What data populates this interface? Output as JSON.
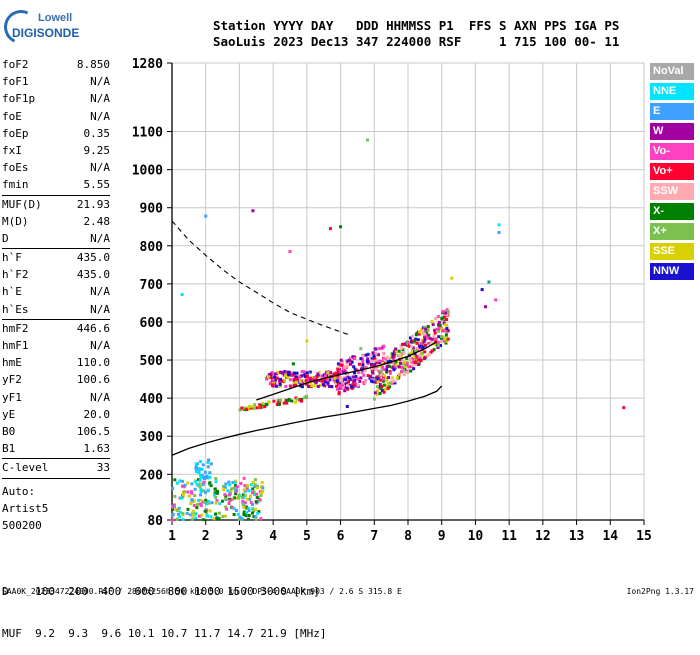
{
  "logo": {
    "line1": "Lowell",
    "line2": "DIGISONDE"
  },
  "header": {
    "line1": "Station YYYY DAY   DDD HHMMSS P1  FFS S AXN PPS IGA PS",
    "line2": "SaoLuis 2023 Dec13 347 224000 RSF     1 715 100 00- 11"
  },
  "params": {
    "g1": [
      {
        "k": "foF2",
        "v": "8.850"
      },
      {
        "k": "foF1",
        "v": "N/A"
      },
      {
        "k": "foF1p",
        "v": "N/A"
      },
      {
        "k": "foE",
        "v": "N/A"
      },
      {
        "k": "foEp",
        "v": "0.35"
      },
      {
        "k": "fxI",
        "v": "9.25"
      },
      {
        "k": "foEs",
        "v": "N/A"
      },
      {
        "k": "fmin",
        "v": "5.55"
      }
    ],
    "g2": [
      {
        "k": "MUF(D)",
        "v": "21.93"
      },
      {
        "k": "M(D)",
        "v": "2.48"
      },
      {
        "k": "D",
        "v": "N/A"
      }
    ],
    "g3": [
      {
        "k": "h`F",
        "v": "435.0"
      },
      {
        "k": "h`F2",
        "v": "435.0"
      },
      {
        "k": "h`E",
        "v": "N/A"
      },
      {
        "k": "h`Es",
        "v": "N/A"
      }
    ],
    "g4": [
      {
        "k": "hmF2",
        "v": "446.6"
      },
      {
        "k": "hmF1",
        "v": "N/A"
      },
      {
        "k": "hmE",
        "v": "110.0"
      },
      {
        "k": "yF2",
        "v": "100.6"
      },
      {
        "k": "yF1",
        "v": "N/A"
      },
      {
        "k": "yE",
        "v": "20.0"
      },
      {
        "k": "B0",
        "v": "106.5"
      },
      {
        "k": "B1",
        "v": "1.63"
      }
    ],
    "clevel": {
      "k": "C-level",
      "v": "33"
    },
    "auto": [
      "Auto:",
      "Artist5",
      "500200"
    ]
  },
  "legend": [
    {
      "label": "NoVal",
      "color": "#a8a8a8"
    },
    {
      "label": "NNE",
      "color": "#00e5ff"
    },
    {
      "label": "E",
      "color": "#3ea0ff"
    },
    {
      "label": "W",
      "color": "#a000a0"
    },
    {
      "label": "Vo-",
      "color": "#ff40c0"
    },
    {
      "label": "Vo+",
      "color": "#ff0030"
    },
    {
      "label": "SSW",
      "color": "#ffaab0"
    },
    {
      "label": "X-",
      "color": "#008000"
    },
    {
      "label": "X+",
      "color": "#7cc050"
    },
    {
      "label": "SSE",
      "color": "#d8d000"
    },
    {
      "label": "NNW",
      "color": "#1a10d0"
    }
  ],
  "bottom": {
    "line1": "D    100  200  400  600  800 1000 1500 3000 [km]",
    "line2": "MUF  9.2  9.3  9.6 10.1 10.7 11.7 14.7 21.9 [MHz]"
  },
  "footer": "SAA0K_2023347224000.RSF / 280fx256h 50 kHz 5.0 km / DPS-4 SAA0K 903 / 2.6 S 315.8 E",
  "footer_right": "Ion2Png 1.3.17",
  "chart_data": {
    "type": "scatter",
    "title": "",
    "xlabel": "",
    "ylabel": "",
    "xlim": [
      1,
      15
    ],
    "ylim": [
      80,
      1280
    ],
    "x_ticks": [
      1,
      2,
      3,
      4,
      5,
      6,
      7,
      8,
      9,
      10,
      11,
      12,
      13,
      14,
      15
    ],
    "y_ticks": [
      80,
      200,
      300,
      400,
      500,
      600,
      700,
      800,
      900,
      1000,
      1100,
      1280
    ],
    "grid": true,
    "profile_line": {
      "name": "",
      "x": [
        1,
        1.5,
        2,
        2.5,
        3,
        3.5,
        4,
        4.5,
        5,
        5.5,
        6,
        6.5,
        7,
        7.5,
        8,
        8.5,
        8.85,
        9
      ],
      "y": [
        250,
        268,
        282,
        294,
        305,
        315,
        324,
        333,
        342,
        350,
        357,
        365,
        373,
        381,
        392,
        405,
        418,
        432
      ]
    },
    "muf_dashed": {
      "name": "",
      "x": [
        1,
        1.5,
        2,
        2.5,
        3,
        3.5,
        4,
        4.5,
        5,
        5.5,
        6,
        6.3
      ],
      "y": [
        865,
        815,
        775,
        738,
        705,
        678,
        650,
        625,
        607,
        590,
        574,
        565
      ]
    },
    "trace_line": {
      "name": "",
      "x": [
        3.5,
        4,
        4.5,
        5,
        5.5,
        6,
        6.5,
        7,
        7.5,
        8,
        8.5,
        8.85
      ],
      "y": [
        395,
        410,
        425,
        440,
        452,
        462,
        472,
        482,
        495,
        510,
        530,
        548
      ]
    },
    "clusters": [
      {
        "x": [
          1,
          3.7
        ],
        "y": [
          80,
          190
        ]
      },
      {
        "x": [
          1.7,
          2.2
        ],
        "y": [
          180,
          240
        ]
      },
      {
        "x": [
          3.8,
          6.0
        ],
        "y": [
          430,
          470
        ]
      },
      {
        "x": [
          5.9,
          7.3
        ],
        "y": [
          420,
          570
        ]
      },
      {
        "x": [
          7.0,
          9.2
        ],
        "y": [
          440,
          620
        ]
      },
      {
        "x": [
          3.0,
          5.0
        ],
        "y": [
          370,
          400
        ]
      }
    ],
    "scattered_points": [
      {
        "x": 1.3,
        "y": 672
      },
      {
        "x": 2.0,
        "y": 878
      },
      {
        "x": 3.4,
        "y": 892
      },
      {
        "x": 4.5,
        "y": 785
      },
      {
        "x": 5.7,
        "y": 845
      },
      {
        "x": 6.0,
        "y": 850
      },
      {
        "x": 6.8,
        "y": 1078
      },
      {
        "x": 9.3,
        "y": 715
      },
      {
        "x": 10.2,
        "y": 685
      },
      {
        "x": 10.4,
        "y": 705
      },
      {
        "x": 10.7,
        "y": 855
      },
      {
        "x": 10.7,
        "y": 835
      },
      {
        "x": 10.3,
        "y": 640
      },
      {
        "x": 10.6,
        "y": 658
      },
      {
        "x": 14.4,
        "y": 375
      },
      {
        "x": 4.6,
        "y": 490
      },
      {
        "x": 6.6,
        "y": 530
      },
      {
        "x": 5.0,
        "y": 550
      },
      {
        "x": 6.2,
        "y": 378
      }
    ]
  }
}
